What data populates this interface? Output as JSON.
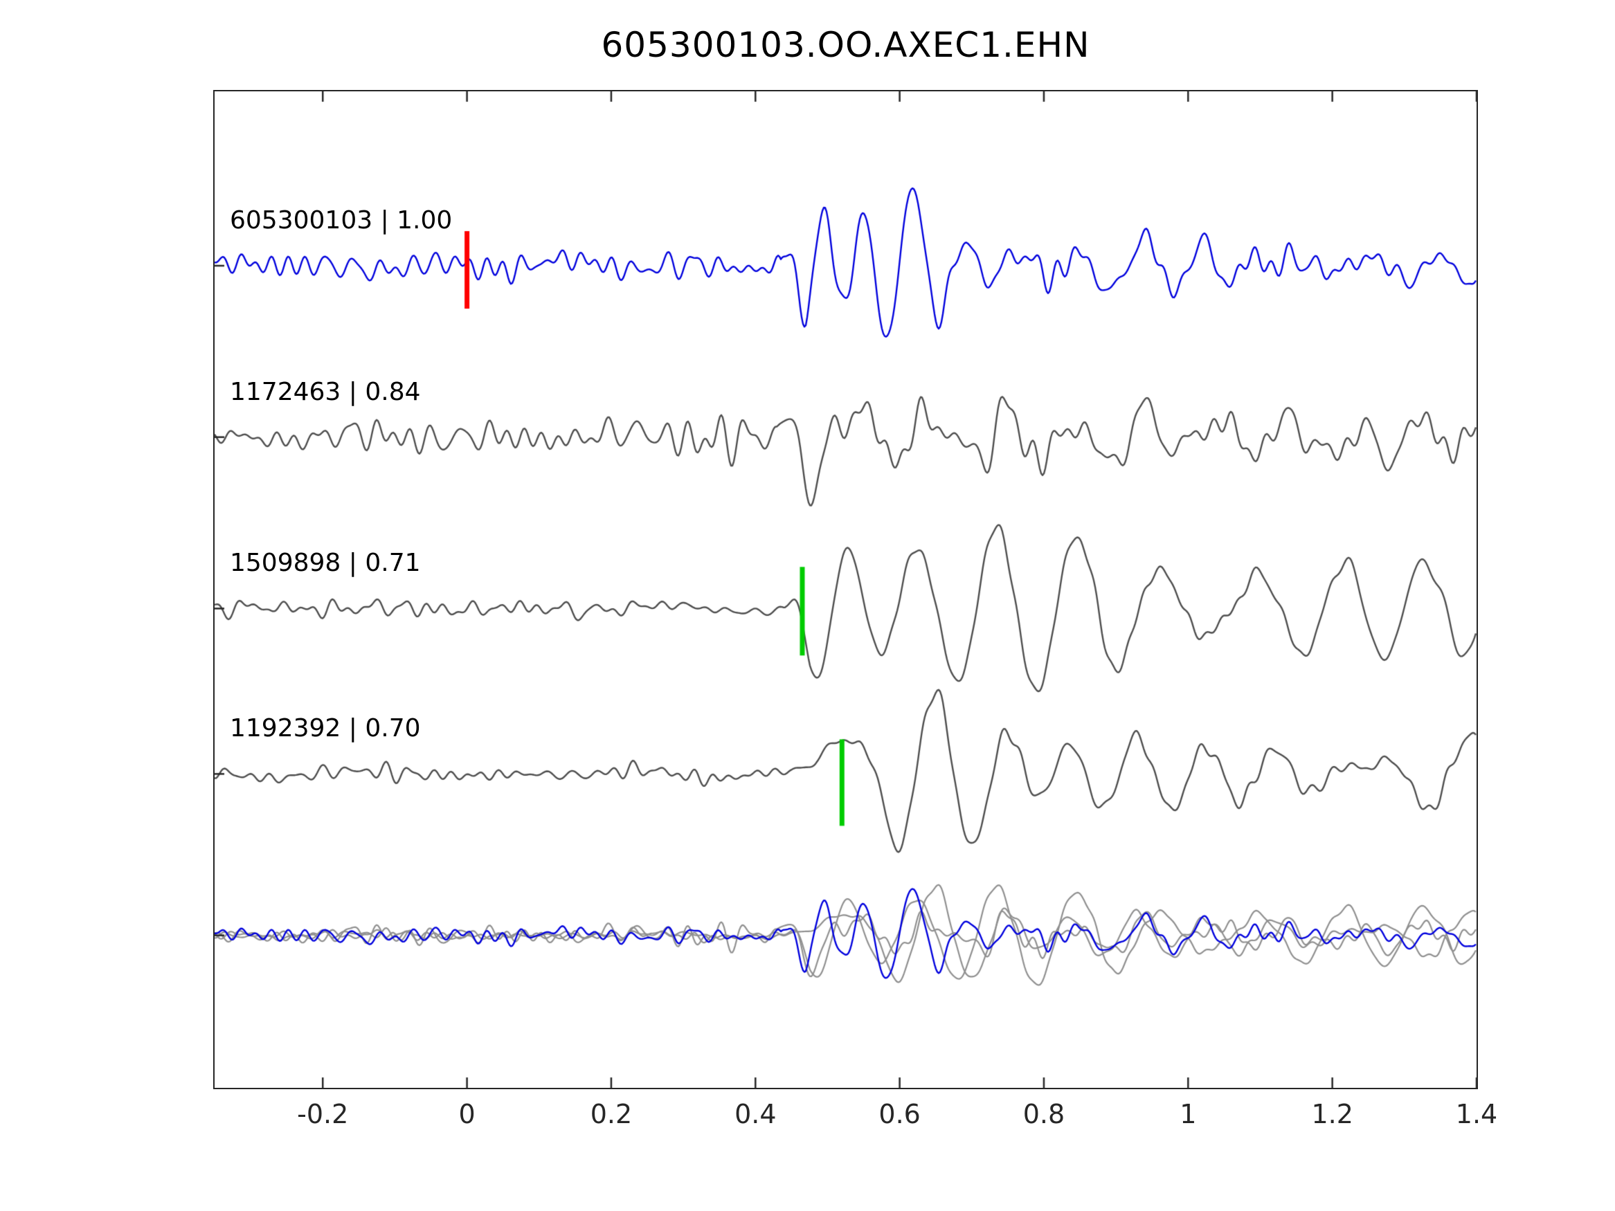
{
  "chart_data": {
    "type": "line",
    "title": "605300103.OO.AXEC1.EHN",
    "xlabel": "",
    "ylabel": "",
    "grid": false,
    "legend_position": "none",
    "xlim": [
      -0.35,
      1.4
    ],
    "x_ticks": [
      -0.2,
      0,
      0.2,
      0.4,
      0.6,
      0.8,
      1,
      1.2,
      1.4
    ],
    "x_tick_labels": [
      "-0.2",
      "0",
      "0.2",
      "0.4",
      "0.6",
      "0.8",
      "1",
      "1.2",
      "1.4"
    ],
    "frame_color": "#262626",
    "series": [
      {
        "id": "605300103",
        "correlation": 1.0,
        "label": "605300103 | 1.00",
        "color": "#0000dd",
        "baseline_frac": 0.175,
        "noise_amp": 26,
        "event_amp": 108,
        "onset": 0.435,
        "decay": 0.09,
        "coda": 0.25,
        "ef": [
          9,
          18
        ],
        "wp": 0.082,
        "seed": 7,
        "pick": {
          "x": 0.0,
          "color": "#ff0000",
          "up": 50,
          "down": 62
        }
      },
      {
        "id": "1172463",
        "correlation": 0.84,
        "label": "1172463 | 0.84",
        "color": "#4d4d4d",
        "baseline_frac": 0.347,
        "noise_amp": 42,
        "event_amp": 80,
        "onset": 0.43,
        "decay": 0.6,
        "coda": 0.9,
        "ef": [
          8,
          16
        ],
        "wp": 0.09,
        "seed": 13,
        "pick": null
      },
      {
        "id": "1509898",
        "correlation": 0.71,
        "label": "1509898 | 0.71",
        "color": "#4d4d4d",
        "baseline_frac": 0.519,
        "noise_amp": 17,
        "event_amp": 118,
        "onset": 0.44,
        "decay": 0.5,
        "coda": 0.85,
        "ef": [
          5,
          11
        ],
        "wp": 0.11,
        "seed": 23,
        "pick": {
          "x": 0.465,
          "color": "#00cc00",
          "up": 60,
          "down": 68
        }
      },
      {
        "id": "1192392",
        "correlation": 0.7,
        "label": "1192392 | 0.70",
        "color": "#4d4d4d",
        "baseline_frac": 0.685,
        "noise_amp": 19,
        "event_amp": 120,
        "onset": 0.45,
        "decay": 0.5,
        "coda": 0.85,
        "ef": [
          5,
          11
        ],
        "wp": 0.11,
        "seed": 37,
        "pick": {
          "x": 0.52,
          "color": "#00cc00",
          "up": 50,
          "down": 75
        }
      }
    ],
    "overlay": {
      "baseline_frac": 0.847,
      "scale": 0.6,
      "gray": "#8f8f8f",
      "highlight": "#0000dd"
    }
  }
}
